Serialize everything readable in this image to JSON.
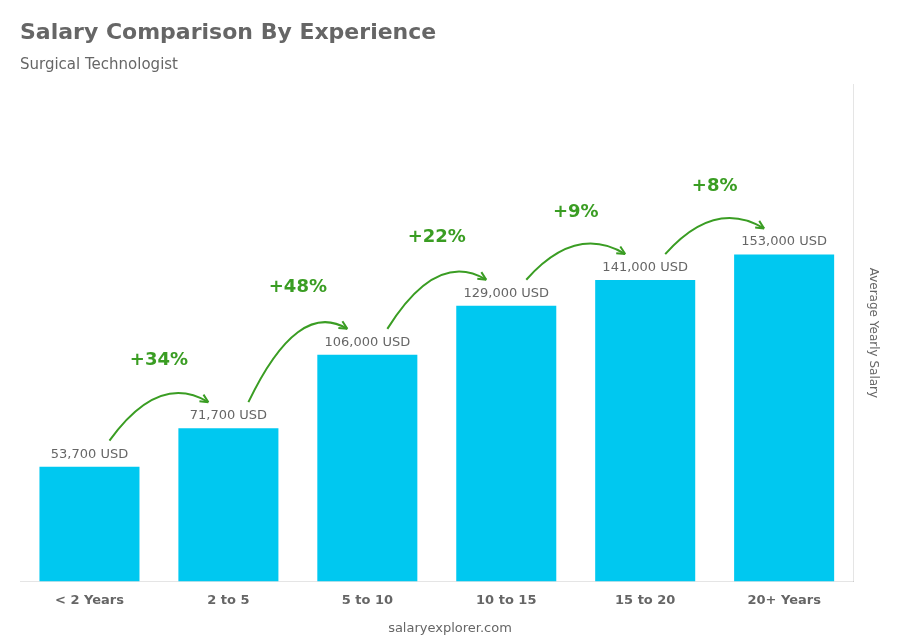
{
  "chart_data": {
    "type": "bar",
    "title": "Salary Comparison By Experience",
    "subtitle": "Surgical Technologist",
    "categories": [
      "< 2 Years",
      "2 to 5",
      "5 to 10",
      "10 to 15",
      "15 to 20",
      "20+ Years"
    ],
    "values": [
      53700,
      71700,
      106000,
      129000,
      141000,
      153000
    ],
    "value_labels": [
      "53,700 USD",
      "71,700 USD",
      "106,000 USD",
      "129,000 USD",
      "141,000 USD",
      "153,000 USD"
    ],
    "data_labels": true,
    "color": "#00c8f0",
    "ylabel": "Average Yearly Salary",
    "ylim": [
      0,
      232560
    ],
    "grid": false,
    "tick_labels": "x",
    "annotations": [
      {
        "text": "+34%",
        "color": "#3a9d23"
      },
      {
        "text": "+48%",
        "color": "#3a9d23"
      },
      {
        "text": "+22%",
        "color": "#3a9d23"
      },
      {
        "text": "+9%",
        "color": "#3a9d23"
      },
      {
        "text": "+8%",
        "color": "#3a9d23"
      }
    ],
    "source": "salaryexplorer.com"
  }
}
